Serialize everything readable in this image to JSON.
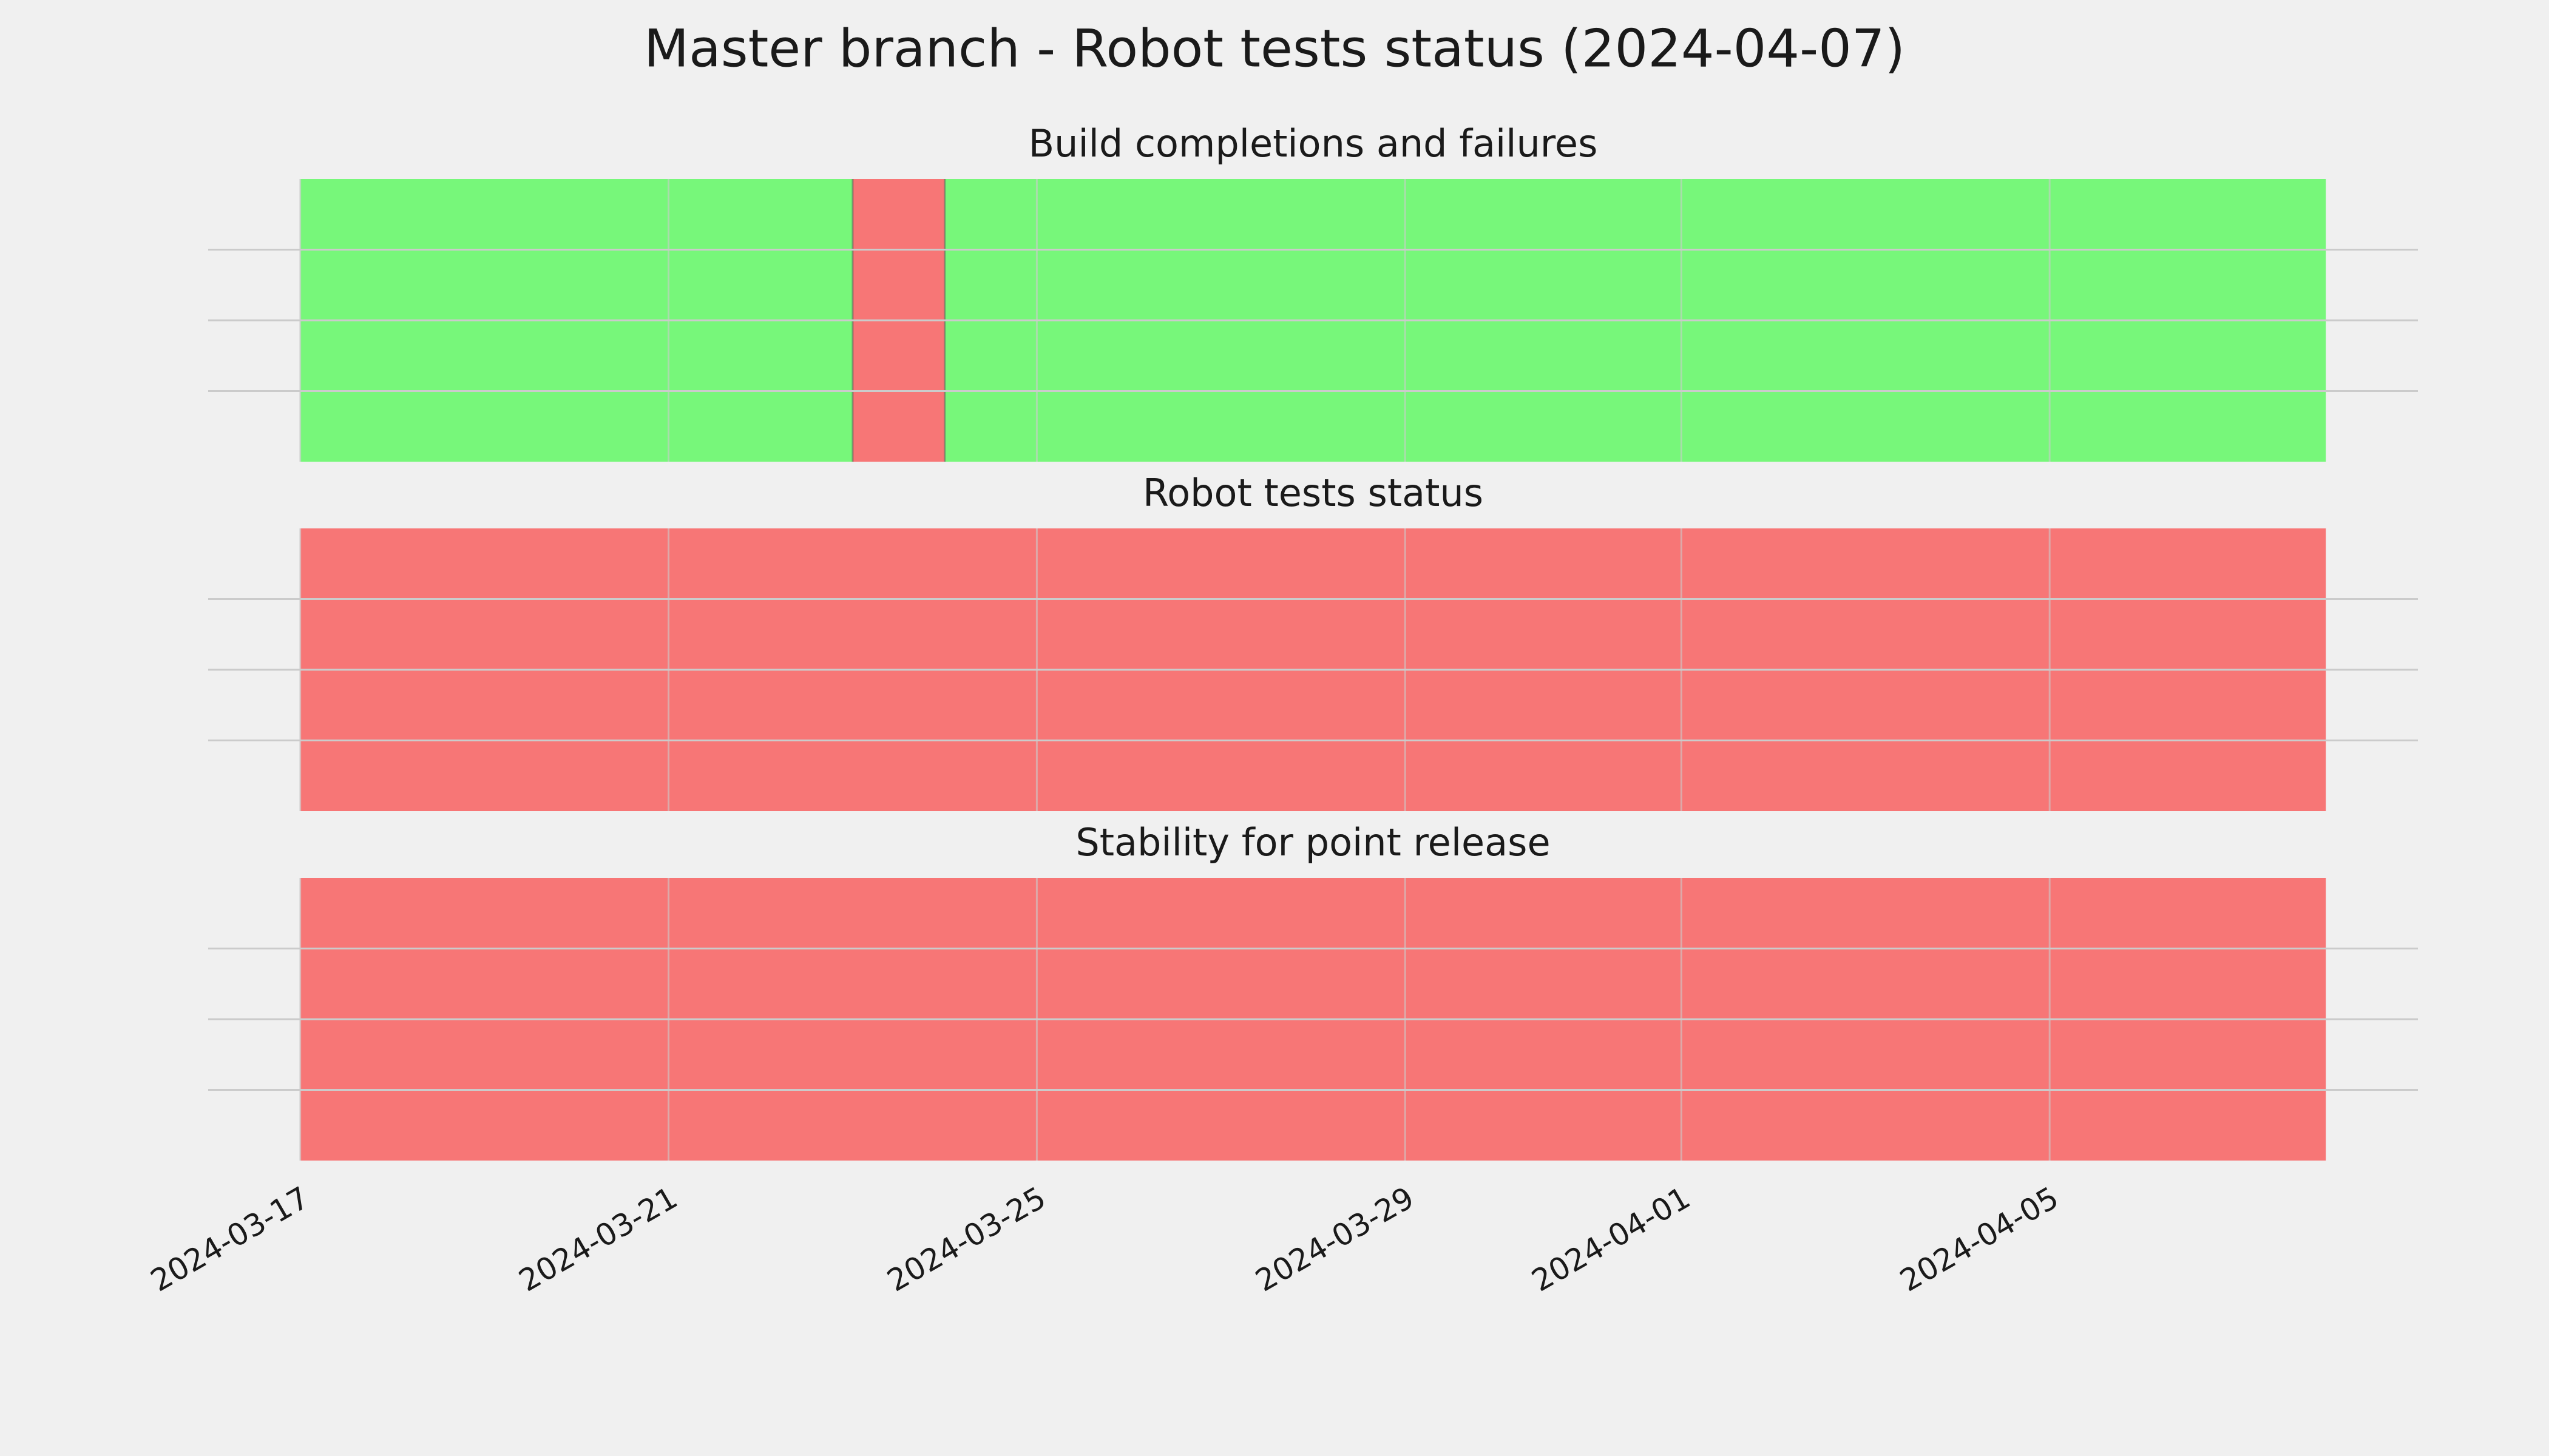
{
  "title": "Master branch - Robot tests status (2024-04-07)",
  "chart_data": [
    {
      "type": "timeline",
      "title": "Build completions and failures",
      "spans": [
        {
          "start": "2024-03-17",
          "end": "2024-03-23",
          "color": "#77f77a"
        },
        {
          "start": "2024-03-23",
          "end": "2024-03-24",
          "color": "#f77676"
        },
        {
          "start": "2024-03-24",
          "end": "2024-04-08",
          "color": "#77f77a"
        }
      ],
      "xlim": [
        "2024-03-16",
        "2024-04-09"
      ],
      "xticks": [
        "2024-03-17",
        "2024-03-21",
        "2024-03-25",
        "2024-03-29",
        "2024-04-01",
        "2024-04-05"
      ],
      "ylim": [
        0,
        1
      ],
      "yticks": [
        0.25,
        0.5,
        0.75
      ],
      "grid": true
    },
    {
      "type": "timeline",
      "title": "Robot tests status",
      "spans": [
        {
          "start": "2024-03-17",
          "end": "2024-04-08",
          "color": "#f77676"
        }
      ],
      "xlim": [
        "2024-03-16",
        "2024-04-09"
      ],
      "xticks": [
        "2024-03-17",
        "2024-03-21",
        "2024-03-25",
        "2024-03-29",
        "2024-04-01",
        "2024-04-05"
      ],
      "ylim": [
        0,
        1
      ],
      "yticks": [
        0.25,
        0.5,
        0.75
      ],
      "grid": true
    },
    {
      "type": "timeline",
      "title": "Stability for point release",
      "spans": [
        {
          "start": "2024-03-17",
          "end": "2024-04-08",
          "color": "#f77676"
        }
      ],
      "xlim": [
        "2024-03-16",
        "2024-04-09"
      ],
      "xticks": [
        "2024-03-17",
        "2024-03-21",
        "2024-03-25",
        "2024-03-29",
        "2024-04-01",
        "2024-04-05"
      ],
      "ylim": [
        0,
        1
      ],
      "yticks": [
        0.25,
        0.5,
        0.75
      ],
      "grid": true
    }
  ]
}
